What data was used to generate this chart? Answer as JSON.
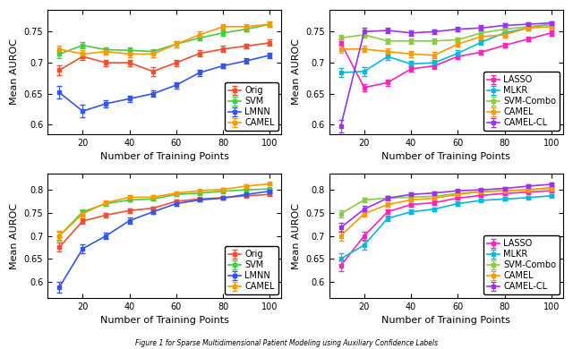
{
  "x": [
    10,
    20,
    30,
    40,
    50,
    60,
    70,
    80,
    90,
    100
  ],
  "subplot1": {
    "ylabel": "Mean AUROC",
    "xlabel": "Number of Training Points",
    "ylim": [
      0.585,
      0.785
    ],
    "yticks": [
      0.6,
      0.65,
      0.7,
      0.75
    ],
    "series": [
      {
        "name": "Orig",
        "color": "#F05030",
        "y": [
          0.688,
          0.71,
          0.7,
          0.7,
          0.686,
          0.7,
          0.715,
          0.722,
          0.727,
          0.732
        ],
        "err": [
          0.008,
          0.005,
          0.005,
          0.005,
          0.007,
          0.005,
          0.005,
          0.005,
          0.004,
          0.005
        ]
      },
      {
        "name": "SVM",
        "color": "#44CC44",
        "y": [
          0.714,
          0.728,
          0.721,
          0.72,
          0.718,
          0.73,
          0.74,
          0.748,
          0.754,
          0.762
        ],
        "err": [
          0.006,
          0.005,
          0.004,
          0.004,
          0.004,
          0.005,
          0.004,
          0.004,
          0.004,
          0.004
        ]
      },
      {
        "name": "LMNN",
        "color": "#3355EE",
        "y": [
          0.652,
          0.622,
          0.634,
          0.642,
          0.65,
          0.664,
          0.684,
          0.695,
          0.703,
          0.712
        ],
        "err": [
          0.01,
          0.01,
          0.006,
          0.005,
          0.005,
          0.005,
          0.005,
          0.004,
          0.004,
          0.004
        ]
      },
      {
        "name": "CAMEL",
        "color": "#FF9900",
        "y": [
          0.722,
          0.714,
          0.718,
          0.714,
          0.714,
          0.73,
          0.745,
          0.758,
          0.758,
          0.762
        ],
        "err": [
          0.006,
          0.007,
          0.005,
          0.005,
          0.005,
          0.005,
          0.005,
          0.004,
          0.004,
          0.004
        ]
      }
    ]
  },
  "subplot2": {
    "ylabel": "Mean AUROC",
    "xlabel": "Number of Training Points",
    "ylim": [
      0.585,
      0.785
    ],
    "yticks": [
      0.6,
      0.65,
      0.7,
      0.75
    ],
    "series": [
      {
        "name": "LASSO",
        "color": "#FF22BB",
        "y": [
          0.732,
          0.66,
          0.668,
          0.69,
          0.695,
          0.71,
          0.717,
          0.728,
          0.738,
          0.748
        ],
        "err": [
          0.005,
          0.006,
          0.005,
          0.005,
          0.005,
          0.004,
          0.004,
          0.004,
          0.004,
          0.004
        ]
      },
      {
        "name": "MLKR",
        "color": "#00BBDD",
        "y": [
          0.684,
          0.686,
          0.71,
          0.698,
          0.7,
          0.715,
          0.733,
          0.748,
          0.756,
          0.762
        ],
        "err": [
          0.007,
          0.007,
          0.006,
          0.005,
          0.005,
          0.005,
          0.004,
          0.004,
          0.004,
          0.004
        ]
      },
      {
        "name": "SVM-Combo",
        "color": "#88CC44",
        "y": [
          0.74,
          0.745,
          0.735,
          0.735,
          0.735,
          0.737,
          0.748,
          0.754,
          0.758,
          0.762
        ],
        "err": [
          0.005,
          0.005,
          0.004,
          0.004,
          0.004,
          0.004,
          0.004,
          0.004,
          0.003,
          0.003
        ]
      },
      {
        "name": "CAMEL",
        "color": "#FF9900",
        "y": [
          0.722,
          0.722,
          0.718,
          0.714,
          0.712,
          0.73,
          0.742,
          0.745,
          0.756,
          0.758
        ],
        "err": [
          0.006,
          0.005,
          0.005,
          0.005,
          0.005,
          0.004,
          0.004,
          0.004,
          0.004,
          0.003
        ]
      },
      {
        "name": "CAMEL-CL",
        "color": "#9933EE",
        "y": [
          0.598,
          0.75,
          0.752,
          0.748,
          0.75,
          0.754,
          0.756,
          0.76,
          0.762,
          0.764
        ],
        "err": [
          0.01,
          0.006,
          0.005,
          0.004,
          0.004,
          0.004,
          0.004,
          0.003,
          0.003,
          0.003
        ]
      }
    ]
  },
  "subplot3": {
    "ylabel": "Mean AUROC",
    "xlabel": "Number of Training Points",
    "ylim": [
      0.565,
      0.835
    ],
    "yticks": [
      0.6,
      0.65,
      0.7,
      0.75,
      0.8
    ],
    "series": [
      {
        "name": "Orig",
        "color": "#F05030",
        "y": [
          0.675,
          0.732,
          0.745,
          0.755,
          0.76,
          0.775,
          0.78,
          0.783,
          0.787,
          0.79
        ],
        "err": [
          0.01,
          0.006,
          0.005,
          0.005,
          0.004,
          0.004,
          0.003,
          0.003,
          0.003,
          0.003
        ]
      },
      {
        "name": "SVM",
        "color": "#44CC44",
        "y": [
          0.7,
          0.752,
          0.77,
          0.778,
          0.78,
          0.79,
          0.793,
          0.797,
          0.8,
          0.802
        ],
        "err": [
          0.009,
          0.006,
          0.005,
          0.004,
          0.004,
          0.003,
          0.003,
          0.003,
          0.003,
          0.003
        ]
      },
      {
        "name": "LMNN",
        "color": "#3355EE",
        "y": [
          0.588,
          0.672,
          0.7,
          0.733,
          0.752,
          0.77,
          0.778,
          0.782,
          0.79,
          0.797
        ],
        "err": [
          0.012,
          0.01,
          0.007,
          0.006,
          0.005,
          0.004,
          0.004,
          0.003,
          0.003,
          0.003
        ]
      },
      {
        "name": "CAMEL",
        "color": "#FF9900",
        "y": [
          0.7,
          0.748,
          0.772,
          0.784,
          0.784,
          0.793,
          0.798,
          0.801,
          0.808,
          0.813
        ],
        "err": [
          0.01,
          0.007,
          0.005,
          0.005,
          0.004,
          0.003,
          0.003,
          0.003,
          0.003,
          0.003
        ]
      }
    ]
  },
  "subplot4": {
    "ylabel": "Mean AUROC",
    "xlabel": "Number of Training Points",
    "ylim": [
      0.565,
      0.835
    ],
    "yticks": [
      0.6,
      0.65,
      0.7,
      0.75,
      0.8
    ],
    "series": [
      {
        "name": "LASSO",
        "color": "#FF22BB",
        "y": [
          0.635,
          0.7,
          0.752,
          0.768,
          0.772,
          0.782,
          0.788,
          0.792,
          0.795,
          0.798
        ],
        "err": [
          0.012,
          0.008,
          0.005,
          0.004,
          0.004,
          0.003,
          0.003,
          0.003,
          0.003,
          0.003
        ]
      },
      {
        "name": "MLKR",
        "color": "#00BBDD",
        "y": [
          0.65,
          0.68,
          0.738,
          0.752,
          0.758,
          0.77,
          0.777,
          0.78,
          0.783,
          0.787
        ],
        "err": [
          0.012,
          0.01,
          0.006,
          0.005,
          0.004,
          0.004,
          0.003,
          0.003,
          0.003,
          0.003
        ]
      },
      {
        "name": "SVM-Combo",
        "color": "#88CC44",
        "y": [
          0.748,
          0.778,
          0.782,
          0.784,
          0.786,
          0.792,
          0.796,
          0.798,
          0.8,
          0.803
        ],
        "err": [
          0.008,
          0.005,
          0.004,
          0.004,
          0.004,
          0.003,
          0.003,
          0.003,
          0.003,
          0.003
        ]
      },
      {
        "name": "CAMEL",
        "color": "#FF9900",
        "y": [
          0.7,
          0.748,
          0.768,
          0.778,
          0.782,
          0.79,
          0.796,
          0.798,
          0.8,
          0.805
        ],
        "err": [
          0.01,
          0.007,
          0.005,
          0.004,
          0.004,
          0.003,
          0.003,
          0.003,
          0.003,
          0.003
        ]
      },
      {
        "name": "CAMEL-CL",
        "color": "#9933EE",
        "y": [
          0.718,
          0.758,
          0.782,
          0.79,
          0.793,
          0.798,
          0.8,
          0.803,
          0.808,
          0.812
        ],
        "err": [
          0.01,
          0.007,
          0.005,
          0.004,
          0.004,
          0.003,
          0.003,
          0.003,
          0.003,
          0.003
        ]
      }
    ]
  },
  "marker": "s",
  "markersize": 3,
  "linewidth": 1.2,
  "capsize": 2,
  "elinewidth": 0.8,
  "legend_fontsize": 7,
  "tick_fontsize": 7,
  "label_fontsize": 8,
  "caption": "Figure 1 for Sparse Multidimensional Patient Modeling using Auxiliary Confidence Labels"
}
